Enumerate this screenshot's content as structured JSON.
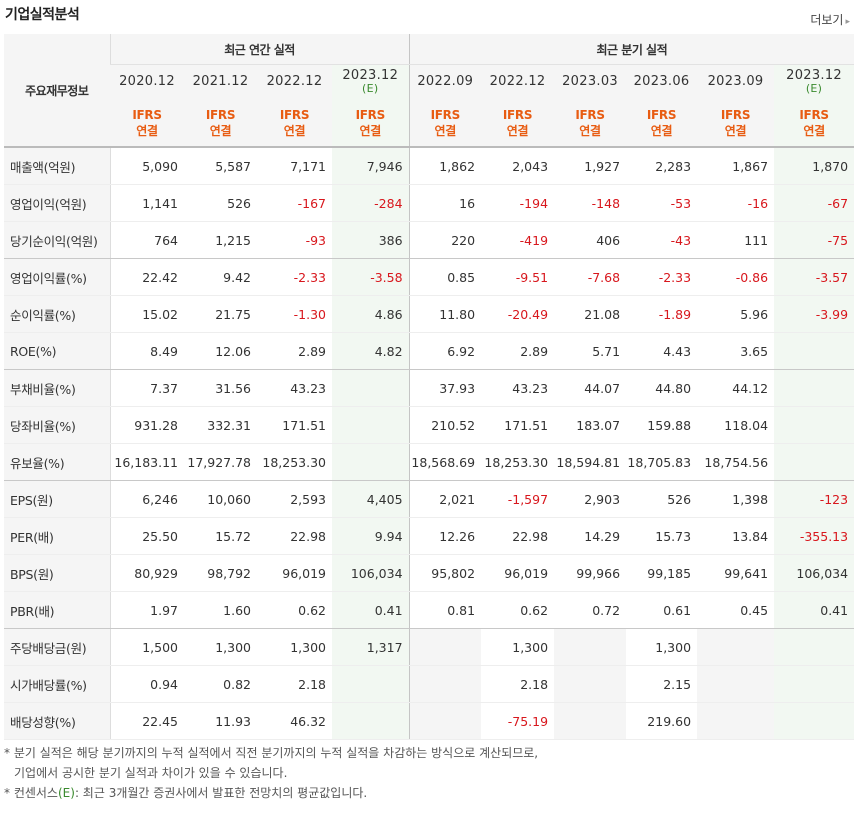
{
  "header": {
    "title": "기업실적분석",
    "more_label": "더보기",
    "more_arrow": "▸"
  },
  "table": {
    "row_head_label": "주요재무정보",
    "annual_group_label": "최근 연간 실적",
    "quarter_group_label": "최근 분기 실적",
    "columns": [
      {
        "date": "2020.12",
        "estimate": false,
        "std": "IFRS",
        "basis": "연결",
        "tag": ""
      },
      {
        "date": "2021.12",
        "estimate": false,
        "std": "IFRS",
        "basis": "연결",
        "tag": ""
      },
      {
        "date": "2022.12",
        "estimate": false,
        "std": "IFRS",
        "basis": "연결",
        "tag": ""
      },
      {
        "date": "2023.12",
        "estimate": true,
        "std": "IFRS",
        "basis": "연결",
        "tag": "(E)"
      },
      {
        "date": "2022.09",
        "estimate": false,
        "std": "IFRS",
        "basis": "연결",
        "tag": ""
      },
      {
        "date": "2022.12",
        "estimate": false,
        "std": "IFRS",
        "basis": "연결",
        "tag": ""
      },
      {
        "date": "2023.03",
        "estimate": false,
        "std": "IFRS",
        "basis": "연결",
        "tag": ""
      },
      {
        "date": "2023.06",
        "estimate": false,
        "std": "IFRS",
        "basis": "연결",
        "tag": ""
      },
      {
        "date": "2023.09",
        "estimate": false,
        "std": "IFRS",
        "basis": "연결",
        "tag": ""
      },
      {
        "date": "2023.12",
        "estimate": true,
        "std": "IFRS",
        "basis": "연결",
        "tag": "(E)"
      }
    ],
    "rows": [
      {
        "label": "매출액(억원)",
        "values": [
          "5,090",
          "5,587",
          "7,171",
          "7,946",
          "1,862",
          "2,043",
          "1,927",
          "2,283",
          "1,867",
          "1,870"
        ]
      },
      {
        "label": "영업이익(억원)",
        "values": [
          "1,141",
          "526",
          "-167",
          "-284",
          "16",
          "-194",
          "-148",
          "-53",
          "-16",
          "-67"
        ]
      },
      {
        "label": "당기순이익(억원)",
        "values": [
          "764",
          "1,215",
          "-93",
          "386",
          "220",
          "-419",
          "406",
          "-43",
          "111",
          "-75"
        ],
        "group_end": true
      },
      {
        "label": "영업이익률(%)",
        "values": [
          "22.42",
          "9.42",
          "-2.33",
          "-3.58",
          "0.85",
          "-9.51",
          "-7.68",
          "-2.33",
          "-0.86",
          "-3.57"
        ]
      },
      {
        "label": "순이익률(%)",
        "values": [
          "15.02",
          "21.75",
          "-1.30",
          "4.86",
          "11.80",
          "-20.49",
          "21.08",
          "-1.89",
          "5.96",
          "-3.99"
        ]
      },
      {
        "label": "ROE(%)",
        "values": [
          "8.49",
          "12.06",
          "2.89",
          "4.82",
          "6.92",
          "2.89",
          "5.71",
          "4.43",
          "3.65",
          ""
        ],
        "group_end": true
      },
      {
        "label": "부채비율(%)",
        "values": [
          "7.37",
          "31.56",
          "43.23",
          "",
          "37.93",
          "43.23",
          "44.07",
          "44.80",
          "44.12",
          ""
        ]
      },
      {
        "label": "당좌비율(%)",
        "values": [
          "931.28",
          "332.31",
          "171.51",
          "",
          "210.52",
          "171.51",
          "183.07",
          "159.88",
          "118.04",
          ""
        ]
      },
      {
        "label": "유보율(%)",
        "values": [
          "16,183.11",
          "17,927.78",
          "18,253.30",
          "",
          "18,568.69",
          "18,253.30",
          "18,594.81",
          "18,705.83",
          "18,754.56",
          ""
        ],
        "group_end": true
      },
      {
        "label": "EPS(원)",
        "values": [
          "6,246",
          "10,060",
          "2,593",
          "4,405",
          "2,021",
          "-1,597",
          "2,903",
          "526",
          "1,398",
          "-123"
        ]
      },
      {
        "label": "PER(배)",
        "values": [
          "25.50",
          "15.72",
          "22.98",
          "9.94",
          "12.26",
          "22.98",
          "14.29",
          "15.73",
          "13.84",
          "-355.13"
        ]
      },
      {
        "label": "BPS(원)",
        "values": [
          "80,929",
          "98,792",
          "96,019",
          "106,034",
          "95,802",
          "96,019",
          "99,966",
          "99,185",
          "99,641",
          "106,034"
        ]
      },
      {
        "label": "PBR(배)",
        "values": [
          "1.97",
          "1.60",
          "0.62",
          "0.41",
          "0.81",
          "0.62",
          "0.72",
          "0.61",
          "0.45",
          "0.41"
        ],
        "group_end": true
      },
      {
        "label": "주당배당금(원)",
        "values": [
          "1,500",
          "1,300",
          "1,300",
          "1,317",
          "",
          "1,300",
          "",
          "1,300",
          "",
          ""
        ],
        "blank_gray": [
          4,
          6,
          8,
          9
        ]
      },
      {
        "label": "시가배당률(%)",
        "values": [
          "0.94",
          "0.82",
          "2.18",
          "",
          "",
          "2.18",
          "",
          "2.15",
          "",
          ""
        ],
        "blank_gray": [
          4,
          6,
          8,
          9
        ]
      },
      {
        "label": "배당성향(%)",
        "values": [
          "22.45",
          "11.93",
          "46.32",
          "",
          "",
          "-75.19",
          "",
          "219.60",
          "",
          ""
        ],
        "blank_gray": [
          4,
          6,
          8,
          9
        ]
      }
    ]
  },
  "footnotes": {
    "line1": "* 분기 실적은 해당 분기까지의 누적 실적에서 직전 분기까지의 누적 실적을 차감하는 방식으로 계산되므로,",
    "line2": "기업에서 공시한 분기 실적과 차이가 있을 수 있습니다.",
    "line3_prefix": "* 컨센서스",
    "line3_tag": "(E)",
    "line3_suffix": ": 최근 3개월간 증권사에서 발표한 전망치의 평균값입니다."
  },
  "colors": {
    "negative": "#d8171d",
    "ifrs": "#e85c12",
    "estimate_tag": "#3a8a2e",
    "estimate_bg": "#f2f8f2"
  }
}
